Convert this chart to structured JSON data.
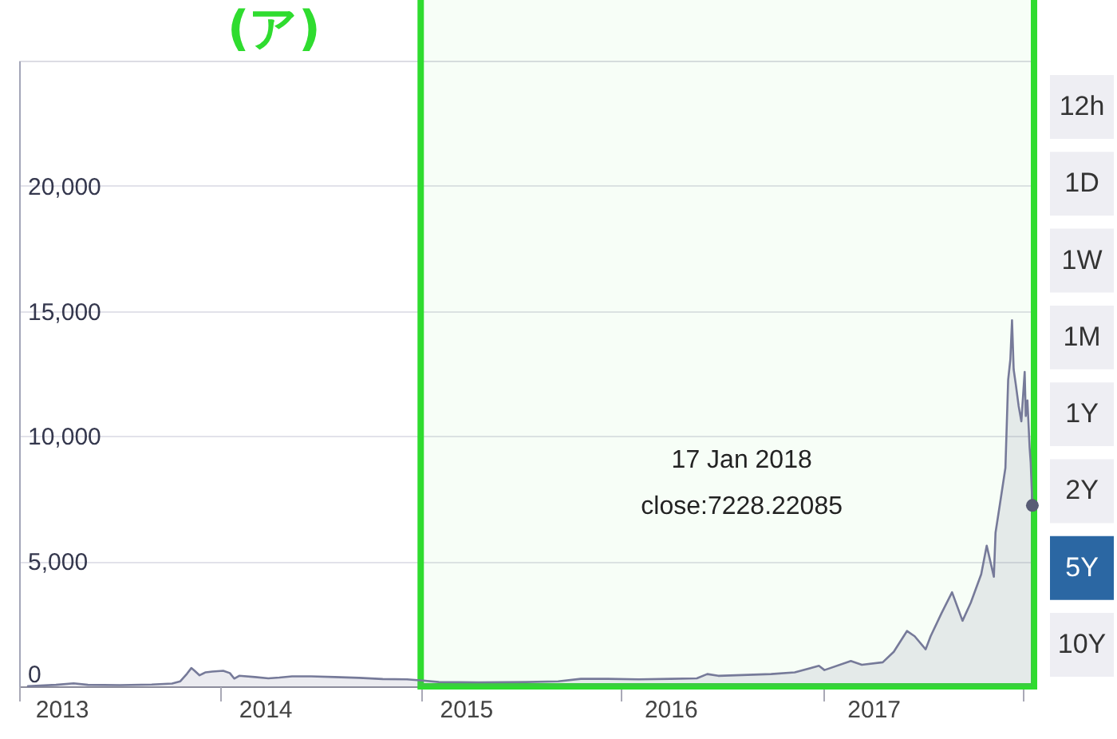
{
  "chart_data": [
    {
      "type": "area",
      "x": [
        "2013-01-17",
        "2013-03-09",
        "2013-04-10",
        "2013-05-06",
        "2013-07-03",
        "2013-08-30",
        "2013-10-06",
        "2013-10-21",
        "2013-11-02",
        "2013-11-10",
        "2013-11-16",
        "2013-11-25",
        "2013-12-06",
        "2013-12-18",
        "2014-01-07",
        "2014-01-19",
        "2014-01-27",
        "2014-02-05",
        "2014-03-06",
        "2014-03-30",
        "2014-04-19",
        "2014-05-12",
        "2014-06-16",
        "2014-07-29",
        "2014-09-11",
        "2014-10-24",
        "2014-12-07",
        "2015-01-05",
        "2015-02-03",
        "2015-04-16",
        "2015-07-12",
        "2015-09-08",
        "2015-10-19",
        "2015-12-05",
        "2016-02-01",
        "2016-03-30",
        "2016-05-17",
        "2016-06-05",
        "2016-06-25",
        "2016-08-07",
        "2016-09-29",
        "2016-11-11",
        "2016-12-25",
        "2017-01-04",
        "2017-02-21",
        "2017-03-13",
        "2017-04-20",
        "2017-05-10",
        "2017-06-03",
        "2017-06-17",
        "2017-07-07",
        "2017-07-16",
        "2017-08-05",
        "2017-08-24",
        "2017-09-12",
        "2017-09-27",
        "2017-10-16",
        "2017-10-26",
        "2017-11-08",
        "2017-11-11",
        "2017-11-19",
        "2017-11-29",
        "2017-12-04",
        "2017-12-08",
        "2017-12-11",
        "2017-12-14",
        "2017-12-18",
        "2017-12-23",
        "2017-12-28",
        "2018-01-03",
        "2018-01-05",
        "2018-01-08",
        "2018-01-12",
        "2018-01-14",
        "2018-01-17"
      ],
      "series": [
        {
          "color": "#767a99",
          "values": [
            10,
            60,
            120,
            60,
            50,
            70,
            110,
            200,
            500,
            730,
            620,
            440,
            560,
            590,
            620,
            530,
            310,
            420,
            370,
            320,
            350,
            400,
            400,
            370,
            340,
            290,
            280,
            230,
            170,
            160,
            170,
            200,
            300,
            300,
            280,
            300,
            320,
            490,
            420,
            450,
            490,
            560,
            820,
            650,
            1010,
            860,
            960,
            1380,
            2210,
            2000,
            1480,
            2000,
            2930,
            3760,
            2620,
            3340,
            4480,
            5620,
            4380,
            6140,
            7280,
            8730,
            12250,
            13070,
            14630,
            12660,
            12040,
            11210,
            10590,
            12560,
            10800,
            11420,
            9550,
            8930,
            7228.22085
          ]
        },
        {
          "type": "scatter",
          "x": [
            "2018-01-17"
          ],
          "values": [
            7228.22085
          ],
          "color": "#585c75"
        }
      ],
      "xlim": [
        "2013-01-01",
        "2018-01-20"
      ],
      "xticks": [
        {
          "value": "2013-01-01",
          "label": null
        },
        {
          "value": "2013-03-19",
          "label": "2013"
        },
        {
          "value": "2014-01-01",
          "label": null
        },
        {
          "value": "2014-03-24",
          "label": "2014"
        },
        {
          "value": "2015-01-01",
          "label": null
        },
        {
          "value": "2015-03-24",
          "label": "2015"
        },
        {
          "value": "2016-01-01",
          "label": null
        },
        {
          "value": "2016-03-30",
          "label": "2016"
        },
        {
          "value": "2017-01-01",
          "label": null
        },
        {
          "value": "2017-04-03",
          "label": "2017"
        },
        {
          "value": "2018-01-01",
          "label": null
        }
      ],
      "ylim": [
        0,
        25000
      ],
      "yticks": [
        0,
        {
          "value": 5000,
          "label": "5,000"
        },
        {
          "value": 10000,
          "label": "10,000"
        },
        {
          "value": 15000,
          "label": "15,000"
        },
        {
          "value": 20000,
          "label": "20,000"
        }
      ],
      "grid": "y",
      "bands": [
        {
          "axis": "x",
          "from": "2015-01-01",
          "to": "2018-01-20",
          "label": "(ア)",
          "color": "#2fdc2f"
        }
      ],
      "annotations": [
        "17 Jan 2018",
        "close:7228.22085"
      ]
    },
    {
      "type": "other",
      "categories": [
        "12h",
        "1D",
        "1W",
        "1M",
        "1Y",
        "2Y",
        "5Y",
        "10Y"
      ],
      "colors": [
        "#eeeef3",
        "#eeeef3",
        "#eeeef3",
        "#eeeef3",
        "#eeeef3",
        "#eeeef3",
        "#2b67a3",
        "#eeeef3"
      ]
    }
  ]
}
